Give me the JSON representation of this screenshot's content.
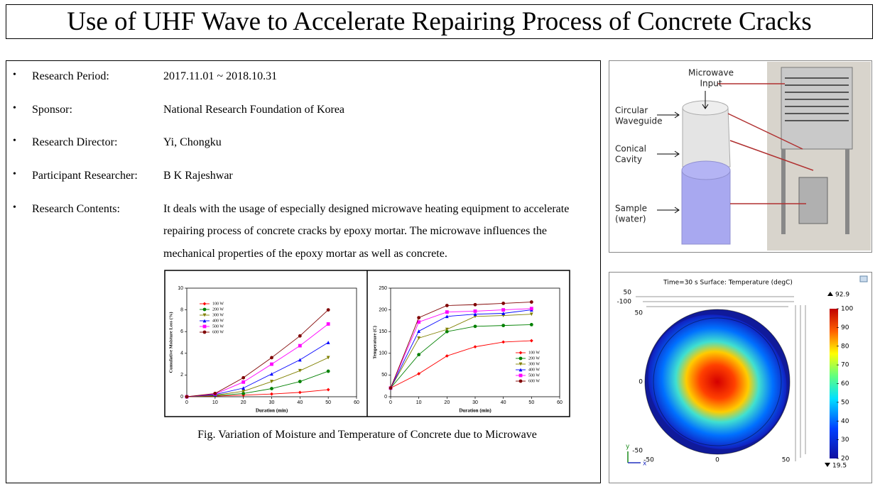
{
  "title": "Use of UHF Wave to Accelerate Repairing Process of Concrete Cracks",
  "items": [
    {
      "label": "Research Period:",
      "value": "2017.11.01 ~ 2018.10.31"
    },
    {
      "label": "Sponsor:",
      "value": "National Research Foundation of Korea"
    },
    {
      "label": "Research Director:",
      "value": "Yi, Chongku"
    },
    {
      "label": "Participant Researcher:",
      "value": "B K Rajeshwar"
    },
    {
      "label": "Research Contents:",
      "value": "It deals with the usage of especially designed microwave heating equipment to accelerate repairing process of concrete cracks by epoxy mortar. The microwave influences the mechanical properties of the epoxy mortar as well as concrete."
    }
  ],
  "figure_caption": "Fig. Variation of Moisture and Temperature of Concrete due to Microwave",
  "chart_data": [
    {
      "type": "line",
      "xlabel": "Duration (min)",
      "ylabel": "Cumulative Moisture Loss (%)",
      "x": [
        0,
        10,
        20,
        30,
        40,
        50
      ],
      "xlim": [
        0,
        60
      ],
      "xticks": [
        0,
        10,
        20,
        30,
        40,
        50,
        60
      ],
      "ylim": [
        0,
        10
      ],
      "yticks": [
        0,
        2,
        4,
        6,
        8,
        10
      ],
      "legend": "upper left",
      "series": [
        {
          "name": "100 W",
          "color": "#ff0000",
          "values": [
            0,
            0.05,
            0.15,
            0.25,
            0.4,
            0.65
          ]
        },
        {
          "name": "200 W",
          "color": "#008000",
          "values": [
            0,
            0.1,
            0.3,
            0.75,
            1.4,
            2.35
          ]
        },
        {
          "name": "300 W",
          "color": "#808000",
          "values": [
            0,
            0.15,
            0.5,
            1.4,
            2.4,
            3.6
          ]
        },
        {
          "name": "400 W",
          "color": "#0000ff",
          "values": [
            0,
            0.2,
            0.8,
            2.1,
            3.4,
            5.0
          ]
        },
        {
          "name": "500 W",
          "color": "#ff00ff",
          "values": [
            0,
            0.25,
            1.35,
            3.0,
            4.7,
            6.7
          ]
        },
        {
          "name": "600 W",
          "color": "#800000",
          "values": [
            0,
            0.3,
            1.75,
            3.6,
            5.6,
            8.0
          ]
        }
      ]
    },
    {
      "type": "line",
      "xlabel": "Duration (min)",
      "ylabel": "Temperature (C)",
      "x": [
        0,
        10,
        20,
        30,
        40,
        50
      ],
      "xlim": [
        0,
        60
      ],
      "xticks": [
        0,
        10,
        20,
        30,
        40,
        50,
        60
      ],
      "ylim": [
        0,
        250
      ],
      "yticks": [
        0,
        50,
        100,
        150,
        200,
        250
      ],
      "legend": "lower right",
      "series": [
        {
          "name": "100 W",
          "color": "#ff0000",
          "values": [
            20,
            53,
            94,
            115,
            126,
            129
          ]
        },
        {
          "name": "200 W",
          "color": "#008000",
          "values": [
            20,
            97,
            150,
            162,
            164,
            166
          ]
        },
        {
          "name": "300 W",
          "color": "#808000",
          "values": [
            20,
            135,
            155,
            185,
            187,
            190
          ]
        },
        {
          "name": "400 W",
          "color": "#0000ff",
          "values": [
            20,
            151,
            185,
            190,
            192,
            200
          ]
        },
        {
          "name": "500 W",
          "color": "#ff00ff",
          "values": [
            20,
            172,
            195,
            197,
            200,
            203
          ]
        },
        {
          "name": "600 W",
          "color": "#800000",
          "values": [
            20,
            182,
            210,
            212,
            215,
            218
          ]
        }
      ]
    }
  ],
  "diagram": {
    "labels": [
      {
        "lines": [
          "Microwave",
          "Input"
        ]
      },
      {
        "lines": [
          "Circular",
          "Waveguide"
        ]
      },
      {
        "lines": [
          "Conical",
          "Cavity"
        ]
      },
      {
        "lines": [
          "Sample",
          "(water)"
        ]
      }
    ]
  },
  "simulation": {
    "title": "Time=30 s  Surface: Temperature (degC)",
    "max": 92.9,
    "min": 19.5,
    "colorbar_lim": [
      20,
      100
    ],
    "colorbar_ticks": [
      20,
      30,
      40,
      50,
      60,
      70,
      80,
      90,
      100
    ],
    "xticks": [
      -50,
      0,
      50
    ],
    "yticks": [
      50,
      0,
      -50
    ],
    "back_ticks": [
      50,
      -100
    ],
    "xlabel": "x",
    "ylabel": "y"
  }
}
